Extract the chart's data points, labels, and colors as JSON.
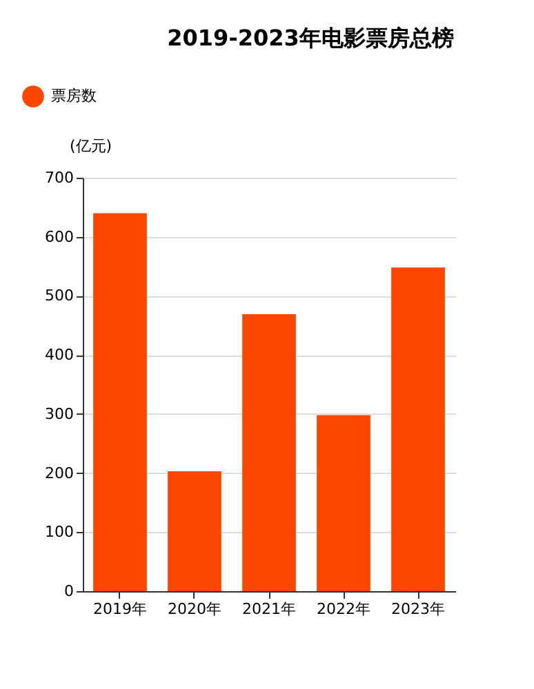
{
  "chart_data": {
    "type": "bar",
    "title": "2019-2023年电影票房总榜",
    "ylabel": "(亿元)",
    "categories": [
      "2019年",
      "2020年",
      "2021年",
      "2022年",
      "2023年"
    ],
    "series": [
      {
        "name": "票房数",
        "color": "#fc4702",
        "values": [
          640,
          203,
          469,
          298,
          548
        ]
      }
    ],
    "ylim": [
      0,
      700
    ],
    "yticks": [
      0,
      100,
      200,
      300,
      400,
      500,
      600,
      700
    ],
    "grid": "y",
    "legend": "top left"
  }
}
